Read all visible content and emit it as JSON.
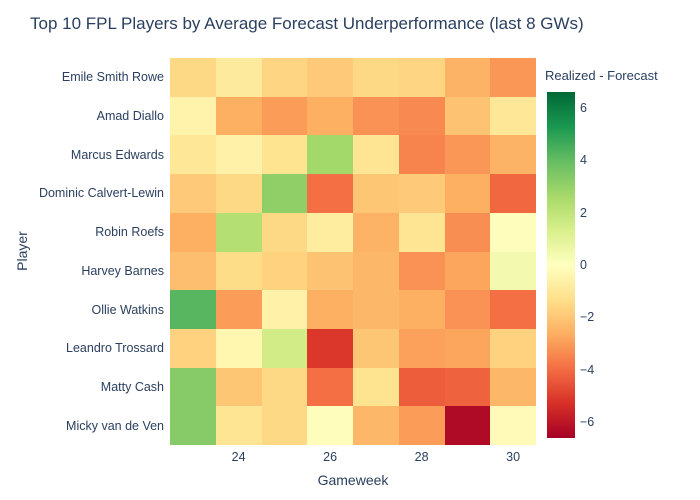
{
  "title": "Top 10 FPL Players by Average Forecast Underperformance (last 8 GWs)",
  "colors": {
    "text": "#2a3f5f",
    "background": "#ffffff"
  },
  "chart_data": {
    "type": "heatmap",
    "title": "Top 10 FPL Players by Average Forecast Underperformance (last 8 GWs)",
    "xlabel": "Gameweek",
    "ylabel": "Player",
    "x": [
      23,
      24,
      25,
      26,
      27,
      28,
      29,
      30
    ],
    "xticks": [
      {
        "label": "24",
        "value": 24
      },
      {
        "label": "26",
        "value": 26
      },
      {
        "label": "28",
        "value": 28
      },
      {
        "label": "30",
        "value": 30
      }
    ],
    "categories": [
      "Emile Smith Rowe",
      "Amad Diallo",
      "Marcus Edwards",
      "Dominic Calvert-Lewin",
      "Robin Roefs",
      "Harvey Barnes",
      "Ollie Watkins",
      "Leandro Trossard",
      "Matty Cash",
      "Micky van de Ven"
    ],
    "series": [
      {
        "name": "Emile Smith Rowe",
        "values": [
          -1.5,
          -0.9,
          -1.6,
          -1.9,
          -1.5,
          -1.6,
          -2.5,
          -3.1
        ]
      },
      {
        "name": "Amad Diallo",
        "values": [
          -0.5,
          -2.6,
          -3.0,
          -2.6,
          -3.2,
          -3.4,
          -2.1,
          -1.0
        ]
      },
      {
        "name": "Marcus Edwards",
        "values": [
          -1.0,
          -0.6,
          -1.2,
          2.7,
          -1.1,
          -3.5,
          -3.1,
          -2.5
        ]
      },
      {
        "name": "Dominic Calvert-Lewin",
        "values": [
          -1.9,
          -1.5,
          3.1,
          -3.9,
          -2.0,
          -1.9,
          -2.6,
          -4.1
        ]
      },
      {
        "name": "Robin Roefs",
        "values": [
          -2.6,
          2.3,
          -1.5,
          -0.8,
          -2.5,
          -1.1,
          -3.3,
          -0.1
        ]
      },
      {
        "name": "Harvey Barnes",
        "values": [
          -2.2,
          -1.4,
          -1.7,
          -2.1,
          -2.4,
          -3.2,
          -2.8,
          0.4
        ]
      },
      {
        "name": "Ollie Watkins",
        "values": [
          4.2,
          -3.0,
          -0.6,
          -2.6,
          -2.4,
          -2.6,
          -3.2,
          -3.9
        ]
      },
      {
        "name": "Leandro Trossard",
        "values": [
          -1.7,
          -0.4,
          1.5,
          -5.1,
          -2.0,
          -2.9,
          -2.8,
          -1.7
        ]
      },
      {
        "name": "Matty Cash",
        "values": [
          3.3,
          -2.0,
          -1.5,
          -3.9,
          -1.2,
          -4.3,
          -4.2,
          -2.4
        ]
      },
      {
        "name": "Micky van de Ven",
        "values": [
          3.3,
          -1.1,
          -1.5,
          -0.1,
          -2.4,
          -3.0,
          -6.3,
          -0.2
        ]
      }
    ],
    "zmin": -6.6,
    "zmax": 6.6,
    "grid": false,
    "legend_position": "right",
    "colorscale_name": "RdYlGn",
    "colorscale": [
      [
        0.0,
        "#a50026"
      ],
      [
        0.1,
        "#d73027"
      ],
      [
        0.2,
        "#f46d43"
      ],
      [
        0.3,
        "#fdae61"
      ],
      [
        0.4,
        "#fee08b"
      ],
      [
        0.5,
        "#ffffbf"
      ],
      [
        0.6,
        "#d9ef8b"
      ],
      [
        0.7,
        "#a6d96a"
      ],
      [
        0.8,
        "#66bd63"
      ],
      [
        0.9,
        "#1a9850"
      ],
      [
        1.0,
        "#006837"
      ]
    ],
    "colorbar": {
      "title": "Realized - Forecast",
      "ticks": [
        {
          "label": "6",
          "value": 6
        },
        {
          "label": "4",
          "value": 4
        },
        {
          "label": "2",
          "value": 2
        },
        {
          "label": "0",
          "value": 0
        },
        {
          "label": "−2",
          "value": -2
        },
        {
          "label": "−4",
          "value": -4
        },
        {
          "label": "−6",
          "value": -6
        }
      ]
    }
  }
}
